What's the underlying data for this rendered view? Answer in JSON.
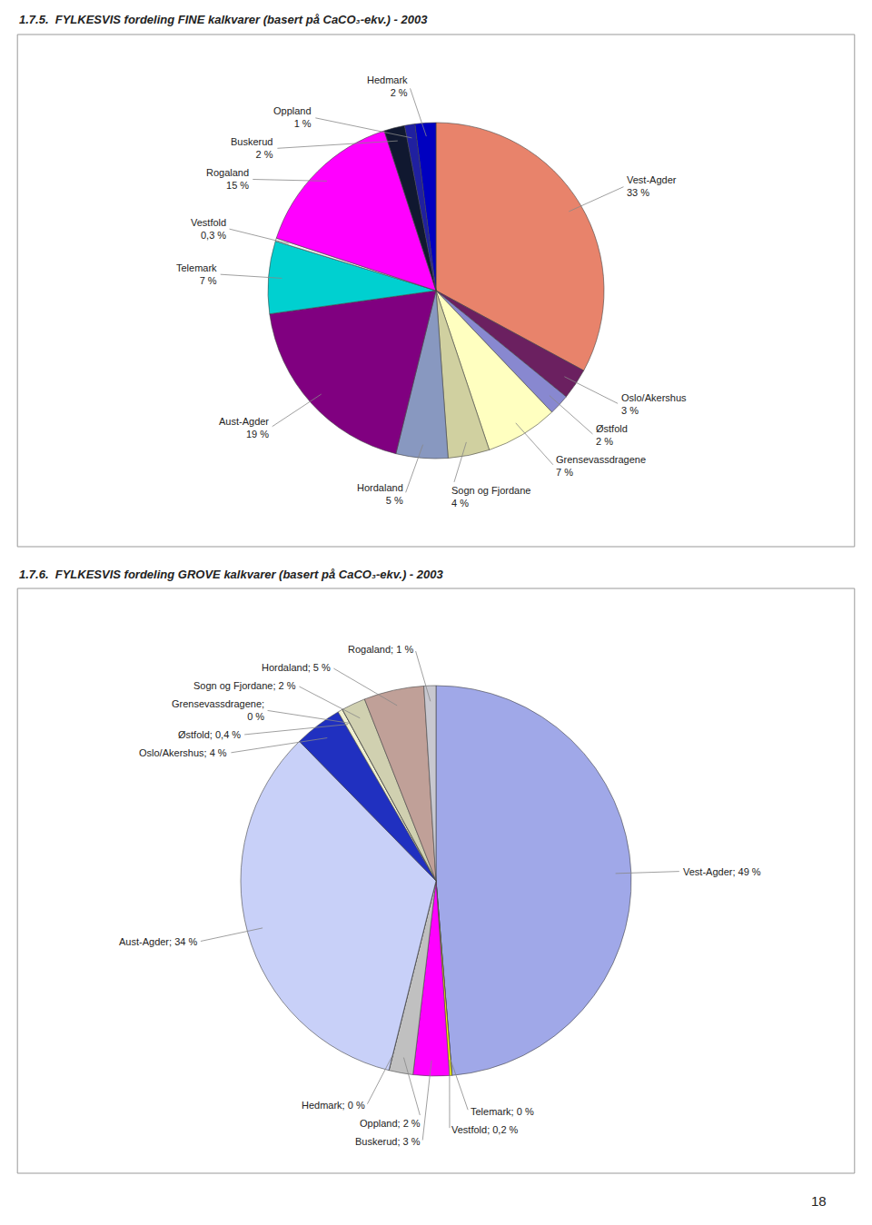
{
  "chart_data": [
    {
      "type": "pie",
      "title": "1.7.5.  FYLKESVIS fordeling FINE kalkvarer (basert på CaCO₃-ekv.) - 2003",
      "categories": [
        "Vest-Agder",
        "Oslo/Akershus",
        "Østfold",
        "Grensevassdragene",
        "Sogn og Fjordane",
        "Hordaland",
        "Aust-Agder",
        "Telemark",
        "Vestfold",
        "Rogaland",
        "Buskerud",
        "Oppland",
        "Hedmark"
      ],
      "values": [
        33,
        3,
        2,
        7,
        4,
        5,
        19,
        7,
        0.3,
        15,
        2,
        1,
        2
      ],
      "value_labels": [
        "Vest-Agder\n33 %",
        "Oslo/Akershus\n3 %",
        "Østfold\n2 %",
        "Grensevassdragene\n7 %",
        "Sogn og Fjordane\n4 %",
        "Hordaland\n5 %",
        "Aust-Agder\n19 %",
        "Telemark\n7 %",
        "Vestfold\n0,3 %",
        "Rogaland\n15 %",
        "Buskerud\n2 %",
        "Oppland\n1 %",
        "Hedmark\n2 %"
      ],
      "colors": [
        "#E8836B",
        "#6B2060",
        "#8888D0",
        "#FFFFC0",
        "#D0D0A0",
        "#8898C0",
        "#800080",
        "#00D0D0",
        "#F0F0F0",
        "#FF00FF",
        "#101830",
        "#2020A0",
        "#0000C0"
      ],
      "data_labels": true
    },
    {
      "type": "pie",
      "title": "1.7.6.  FYLKESVIS fordeling GROVE kalkvarer (basert på CaCO₃-ekv.) - 2003",
      "categories": [
        "Vest-Agder",
        "Telemark",
        "Vestfold",
        "Buskerud",
        "Oppland",
        "Hedmark",
        "Aust-Agder",
        "Oslo/Akershus",
        "Østfold",
        "Grensevassdragene",
        "Sogn og Fjordane",
        "Hordaland",
        "Rogaland"
      ],
      "values": [
        49,
        0.01,
        0.2,
        3,
        2,
        0.01,
        34,
        4,
        0.4,
        0.01,
        2,
        5,
        1
      ],
      "value_labels": [
        "Vest-Agder; 49 %",
        "Telemark; 0 %",
        "Vestfold; 0,2 %",
        "Buskerud; 3 %",
        "Oppland; 2 %",
        "Hedmark; 0 %",
        "Aust-Agder; 34 %",
        "Oslo/Akershus; 4 %",
        "Østfold; 0,4 %",
        "Grensevassdragene;\n0 %",
        "Sogn og Fjordane; 2 %",
        "Hordaland; 5 %",
        "Rogaland; 1 %"
      ],
      "colors": [
        "#A0A8E8",
        "#D0D0D0",
        "#FFFF00",
        "#FF00FF",
        "#C0C0C0",
        "#000000",
        "#C8D0F8",
        "#2030C0",
        "#F0F0D0",
        "#C0C0C0",
        "#D0D0B0",
        "#C0A098",
        "#C8C8D0"
      ],
      "data_labels": true,
      "annotations": [
        "18"
      ]
    }
  ]
}
